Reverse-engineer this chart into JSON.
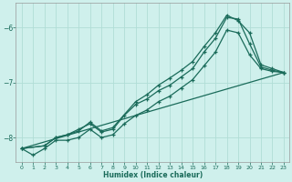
{
  "xlabel": "Humidex (Indice chaleur)",
  "bg_color": "#cff0ec",
  "line_color": "#1a6b5a",
  "grid_color": "#b0ddd6",
  "xlim": [
    -0.5,
    23.5
  ],
  "ylim": [
    -8.45,
    -5.55
  ],
  "xticks": [
    0,
    1,
    2,
    3,
    4,
    5,
    6,
    7,
    8,
    9,
    10,
    11,
    12,
    13,
    14,
    15,
    16,
    17,
    18,
    19,
    20,
    21,
    22,
    23
  ],
  "yticks": [
    -8,
    -7,
    -6
  ],
  "line1_x": [
    0,
    1,
    2,
    3,
    4,
    5,
    6,
    7,
    8,
    9,
    10,
    11,
    12,
    13,
    14,
    15,
    16,
    17,
    18,
    19,
    20,
    21,
    22,
    23
  ],
  "line1_y": [
    -8.2,
    -8.32,
    -8.2,
    -8.05,
    -8.05,
    -8.0,
    -7.85,
    -8.0,
    -7.95,
    -7.75,
    -7.6,
    -7.5,
    -7.35,
    -7.25,
    -7.1,
    -6.95,
    -6.7,
    -6.45,
    -6.05,
    -6.1,
    -6.5,
    -6.75,
    -6.8,
    -6.82
  ],
  "line2_x": [
    0,
    2,
    3,
    4,
    5,
    6,
    7,
    8,
    9,
    10,
    11,
    12,
    13,
    14,
    15,
    16,
    17,
    18,
    19,
    20,
    21,
    22,
    23
  ],
  "line2_y": [
    -8.2,
    -8.15,
    -8.0,
    -7.95,
    -7.85,
    -7.75,
    -7.9,
    -7.85,
    -7.6,
    -7.4,
    -7.3,
    -7.15,
    -7.05,
    -6.9,
    -6.75,
    -6.45,
    -6.2,
    -5.82,
    -5.85,
    -6.3,
    -6.72,
    -6.78,
    -6.82
  ],
  "line3_x": [
    0,
    2,
    3,
    4,
    5,
    6,
    7,
    8,
    10,
    11,
    12,
    13,
    14,
    15,
    16,
    17,
    18,
    19,
    20,
    21,
    22,
    23
  ],
  "line3_y": [
    -8.2,
    -8.15,
    -8.0,
    -7.95,
    -7.88,
    -7.72,
    -7.88,
    -7.82,
    -7.35,
    -7.22,
    -7.05,
    -6.92,
    -6.78,
    -6.62,
    -6.35,
    -6.1,
    -5.78,
    -5.88,
    -6.1,
    -6.68,
    -6.75,
    -6.82
  ],
  "line4_x": [
    0,
    23
  ],
  "line4_y": [
    -8.2,
    -6.82
  ]
}
